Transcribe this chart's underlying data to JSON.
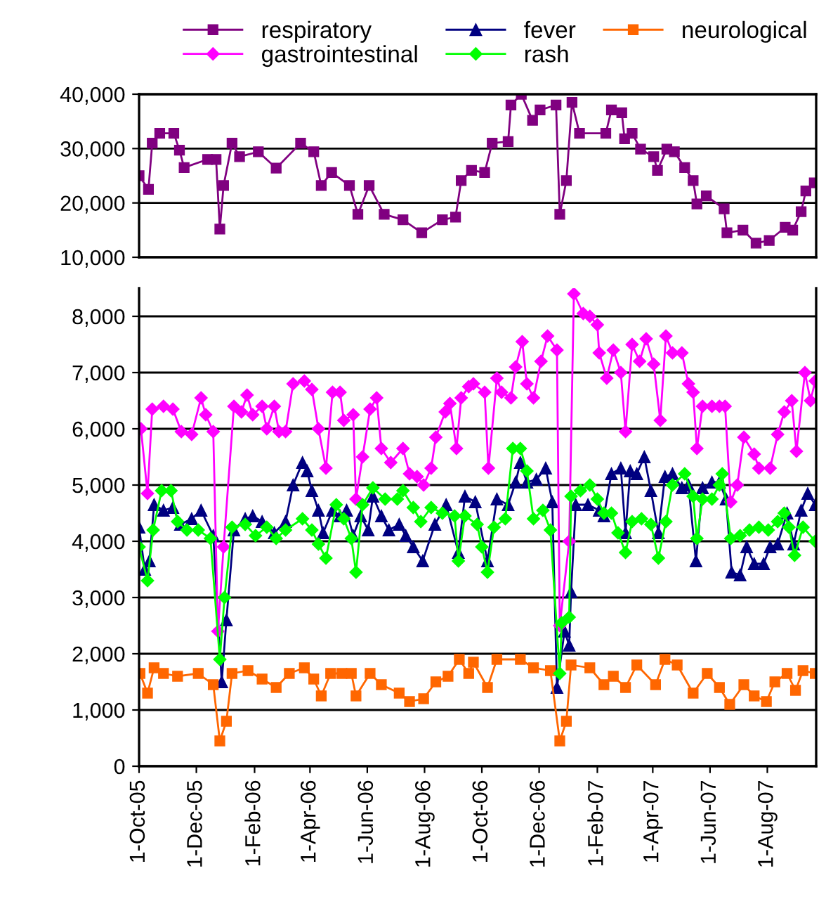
{
  "chart_data": [
    {
      "type": "line",
      "legend": "top",
      "grid": "y",
      "tick_labels": "y",
      "line_style": "solid",
      "xlim": [
        "2005-10-01",
        "2007-09-22"
      ],
      "ylim": [
        10000,
        40000
      ],
      "yticks": [
        {
          "value": 10000,
          "label": "10,000"
        },
        {
          "value": 20000,
          "label": "20,000"
        },
        {
          "value": 30000,
          "label": "30,000"
        },
        {
          "value": 40000,
          "label": "40,000"
        }
      ],
      "series": [
        {
          "name": "respiratory",
          "color": "#800080",
          "marker": "square",
          "x": [
            "2005-10-01",
            "2005-10-11",
            "2005-10-15",
            "2005-10-23",
            "2005-11-07",
            "2005-11-13",
            "2005-11-18",
            "2005-12-13",
            "2005-12-22",
            "2005-12-26",
            "2005-12-30",
            "2006-01-08",
            "2006-01-16",
            "2006-02-05",
            "2006-02-24",
            "2006-03-22",
            "2006-04-05",
            "2006-04-13",
            "2006-04-24",
            "2006-05-13",
            "2006-05-22",
            "2006-06-03",
            "2006-06-19",
            "2006-07-09",
            "2006-07-29",
            "2006-08-20",
            "2006-09-03",
            "2006-09-09",
            "2006-09-20",
            "2006-10-04",
            "2006-10-12",
            "2006-10-29",
            "2006-11-01",
            "2006-11-12",
            "2006-11-24",
            "2006-12-02",
            "2006-12-19",
            "2006-12-23",
            "2006-12-30",
            "2007-01-05",
            "2007-01-13",
            "2007-02-10",
            "2007-02-16",
            "2007-02-27",
            "2007-03-02",
            "2007-03-10",
            "2007-03-19",
            "2007-04-02",
            "2007-04-06",
            "2007-04-16",
            "2007-04-24",
            "2007-05-05",
            "2007-05-14",
            "2007-05-18",
            "2007-05-28",
            "2007-06-16",
            "2007-06-19",
            "2007-07-06",
            "2007-07-20",
            "2007-08-03",
            "2007-08-20",
            "2007-08-28",
            "2007-09-06",
            "2007-09-11",
            "2007-09-20"
          ],
          "values": [
            25000,
            22500,
            31000,
            32800,
            32800,
            29700,
            26500,
            28000,
            28000,
            15200,
            23200,
            31000,
            28500,
            29400,
            26400,
            31000,
            29400,
            23200,
            25600,
            23200,
            17900,
            23200,
            17900,
            16900,
            14500,
            16900,
            17400,
            24100,
            26000,
            25600,
            31000,
            31300,
            38000,
            40000,
            35200,
            37100,
            38000,
            17900,
            24100,
            38500,
            32800,
            32800,
            37100,
            36600,
            31800,
            32800,
            29900,
            28500,
            26000,
            29900,
            29400,
            26500,
            24100,
            19800,
            21300,
            18900,
            14500,
            15000,
            12600,
            13100,
            15500,
            15000,
            18400,
            22200,
            23700
          ]
        }
      ]
    },
    {
      "type": "line",
      "legend": "top",
      "grid": "y",
      "line_style": "solid",
      "xlim": [
        "2005-10-01",
        "2007-09-22"
      ],
      "ylim": [
        0,
        8500
      ],
      "xticks": [
        {
          "value": "2005-10-01",
          "label": "1-Oct-05"
        },
        {
          "value": "2005-12-01",
          "label": "1-Dec-05"
        },
        {
          "value": "2006-02-01",
          "label": "1-Feb-06"
        },
        {
          "value": "2006-04-01",
          "label": "1-Apr-06"
        },
        {
          "value": "2006-06-01",
          "label": "1-Jun-06"
        },
        {
          "value": "2006-08-01",
          "label": "1-Aug-06"
        },
        {
          "value": "2006-10-01",
          "label": "1-Oct-06"
        },
        {
          "value": "2006-12-01",
          "label": "1-Dec-06"
        },
        {
          "value": "2007-02-01",
          "label": "1-Feb-07"
        },
        {
          "value": "2007-04-01",
          "label": "1-Apr-07"
        },
        {
          "value": "2007-06-01",
          "label": "1-Jun-07"
        },
        {
          "value": "2007-08-01",
          "label": "1-Aug-07"
        }
      ],
      "yticks": [
        0,
        {
          "value": 1000,
          "label": "1,000"
        },
        {
          "value": 2000,
          "label": "2,000"
        },
        {
          "value": 3000,
          "label": "3,000"
        },
        {
          "value": 4000,
          "label": "4,000"
        },
        {
          "value": 5000,
          "label": "5,000"
        },
        {
          "value": 6000,
          "label": "6,000"
        },
        {
          "value": 7000,
          "label": "7,000"
        },
        {
          "value": 8000,
          "label": "8,000"
        }
      ],
      "series": [
        {
          "name": "fever",
          "color": "#000080",
          "marker": "triangle",
          "x": [
            "2005-10-01",
            "2005-10-07",
            "2005-10-12",
            "2005-10-17",
            "2005-10-27",
            "2005-11-06",
            "2005-11-14",
            "2005-11-26",
            "2005-12-06",
            "2005-12-19",
            "2005-12-28",
            "2006-01-02",
            "2006-01-10",
            "2006-01-22",
            "2006-01-30",
            "2006-02-09",
            "2006-02-22",
            "2006-03-06",
            "2006-03-14",
            "2006-03-24",
            "2006-03-29",
            "2006-04-03",
            "2006-04-10",
            "2006-04-15",
            "2006-04-25",
            "2006-05-03",
            "2006-05-10",
            "2006-05-17",
            "2006-05-25",
            "2006-06-02",
            "2006-06-07",
            "2006-06-16",
            "2006-06-24",
            "2006-07-05",
            "2006-07-12",
            "2006-07-20",
            "2006-07-30",
            "2006-08-12",
            "2006-08-24",
            "2006-09-06",
            "2006-09-13",
            "2006-09-24",
            "2006-10-07",
            "2006-10-17",
            "2006-10-29",
            "2006-11-06",
            "2006-11-11",
            "2006-11-18",
            "2006-11-28",
            "2006-12-08",
            "2006-12-15",
            "2006-12-20",
            "2006-12-28",
            "2007-01-02",
            "2007-01-04",
            "2007-01-09",
            "2007-01-22",
            "2007-02-03",
            "2007-02-08",
            "2007-02-16",
            "2007-02-26",
            "2007-03-03",
            "2007-03-08",
            "2007-03-15",
            "2007-03-23",
            "2007-03-30",
            "2007-04-07",
            "2007-04-14",
            "2007-04-22",
            "2007-05-02",
            "2007-05-09",
            "2007-05-17",
            "2007-05-24",
            "2007-06-03",
            "2007-06-11",
            "2007-06-18",
            "2007-06-24",
            "2007-07-03",
            "2007-07-10",
            "2007-07-18",
            "2007-07-28",
            "2007-08-04",
            "2007-08-12",
            "2007-08-22",
            "2007-08-29",
            "2007-09-06",
            "2007-09-13",
            "2007-09-21"
          ],
          "values": [
            4250,
            3500,
            3650,
            4650,
            4550,
            4600,
            4300,
            4400,
            4550,
            4100,
            1500,
            2600,
            4200,
            4400,
            4450,
            4350,
            4150,
            4350,
            5000,
            5400,
            5250,
            4900,
            4550,
            4150,
            4550,
            4450,
            4550,
            4100,
            4450,
            4200,
            4800,
            4450,
            4200,
            4300,
            4100,
            3900,
            3650,
            4300,
            4650,
            3800,
            4800,
            4700,
            3650,
            4750,
            4650,
            5050,
            5400,
            5050,
            5100,
            5300,
            4700,
            1400,
            2400,
            2150,
            3100,
            4650,
            4650,
            4550,
            4450,
            5200,
            5300,
            4150,
            5250,
            5200,
            5500,
            4900,
            4150,
            5150,
            5200,
            4950,
            5000,
            3650,
            4950,
            5050,
            5050,
            4750,
            3450,
            3400,
            3900,
            3600,
            3600,
            3900,
            3950,
            4500,
            3950,
            4550,
            4850,
            4650
          ]
        },
        {
          "name": "neurological",
          "color": "#ff6600",
          "marker": "square",
          "x": [
            "2005-10-02",
            "2005-10-10",
            "2005-10-17",
            "2005-10-27",
            "2005-11-11",
            "2005-12-03",
            "2005-12-19",
            "2005-12-26",
            "2006-01-02",
            "2006-01-08",
            "2006-01-25",
            "2006-02-09",
            "2006-02-24",
            "2006-03-10",
            "2006-03-26",
            "2006-04-05",
            "2006-04-13",
            "2006-04-23",
            "2006-05-05",
            "2006-05-15",
            "2006-05-20",
            "2006-06-04",
            "2006-06-16",
            "2006-07-05",
            "2006-07-16",
            "2006-07-31",
            "2006-08-13",
            "2006-08-26",
            "2006-09-07",
            "2006-09-17",
            "2006-09-22",
            "2006-10-07",
            "2006-10-17",
            "2006-11-11",
            "2006-11-25",
            "2006-12-13",
            "2006-12-23",
            "2006-12-30",
            "2007-01-04",
            "2007-01-24",
            "2007-02-08",
            "2007-02-18",
            "2007-03-03",
            "2007-03-15",
            "2007-04-04",
            "2007-04-14",
            "2007-04-27",
            "2007-05-14",
            "2007-05-29",
            "2007-06-11",
            "2007-06-22",
            "2007-07-07",
            "2007-07-18",
            "2007-07-31",
            "2007-08-09",
            "2007-08-22",
            "2007-08-31",
            "2007-09-08",
            "2007-09-21"
          ],
          "values": [
            1650,
            1300,
            1750,
            1650,
            1600,
            1650,
            1450,
            450,
            800,
            1650,
            1700,
            1550,
            1400,
            1650,
            1750,
            1550,
            1250,
            1650,
            1650,
            1650,
            1250,
            1650,
            1450,
            1300,
            1150,
            1200,
            1500,
            1600,
            1900,
            1650,
            1850,
            1400,
            1900,
            1900,
            1750,
            1700,
            450,
            800,
            1800,
            1750,
            1450,
            1600,
            1400,
            1800,
            1450,
            1900,
            1800,
            1300,
            1650,
            1400,
            1100,
            1450,
            1250,
            1150,
            1500,
            1650,
            1350,
            1700,
            1650
          ]
        },
        {
          "name": "gastrointestinal",
          "color": "#ff00ff",
          "marker": "diamond",
          "x": [
            "2005-10-03",
            "2005-10-10",
            "2005-10-15",
            "2005-10-27",
            "2005-11-06",
            "2005-11-15",
            "2005-11-26",
            "2005-12-06",
            "2005-12-11",
            "2005-12-19",
            "2005-12-24",
            "2005-12-30",
            "2006-01-10",
            "2006-01-18",
            "2006-01-24",
            "2006-01-30",
            "2006-02-09",
            "2006-02-14",
            "2006-02-22",
            "2006-02-27",
            "2006-03-06",
            "2006-03-14",
            "2006-03-26",
            "2006-04-03",
            "2006-04-10",
            "2006-04-18",
            "2006-04-25",
            "2006-05-03",
            "2006-05-07",
            "2006-05-17",
            "2006-05-20",
            "2006-05-27",
            "2006-06-04",
            "2006-06-11",
            "2006-06-16",
            "2006-06-26",
            "2006-07-09",
            "2006-07-16",
            "2006-07-24",
            "2006-07-31",
            "2006-08-08",
            "2006-08-13",
            "2006-08-23",
            "2006-08-28",
            "2006-09-04",
            "2006-09-09",
            "2006-09-17",
            "2006-09-22",
            "2006-10-04",
            "2006-10-08",
            "2006-10-17",
            "2006-10-22",
            "2006-11-01",
            "2006-11-06",
            "2006-11-13",
            "2006-11-18",
            "2006-11-25",
            "2006-12-03",
            "2006-12-10",
            "2006-12-20",
            "2006-12-23",
            "2007-01-02",
            "2007-01-07",
            "2007-01-17",
            "2007-01-24",
            "2007-02-01",
            "2007-02-03",
            "2007-02-11",
            "2007-02-18",
            "2007-02-26",
            "2007-03-03",
            "2007-03-10",
            "2007-03-18",
            "2007-03-25",
            "2007-04-02",
            "2007-04-09",
            "2007-04-15",
            "2007-04-22",
            "2007-05-02",
            "2007-05-09",
            "2007-05-14",
            "2007-05-18",
            "2007-05-24",
            "2007-06-03",
            "2007-06-11",
            "2007-06-17",
            "2007-06-23",
            "2007-06-30",
            "2007-07-07",
            "2007-07-18",
            "2007-07-23",
            "2007-08-04",
            "2007-08-12",
            "2007-08-19",
            "2007-08-27",
            "2007-09-01",
            "2007-09-10",
            "2007-09-16",
            "2007-09-21"
          ],
          "values": [
            6000,
            4850,
            6350,
            6400,
            6350,
            5950,
            5900,
            6550,
            6250,
            5950,
            2400,
            3900,
            6400,
            6300,
            6600,
            6250,
            6400,
            6000,
            6400,
            5950,
            5950,
            6800,
            6850,
            6700,
            6000,
            5300,
            6650,
            6650,
            6150,
            6250,
            4750,
            5500,
            6350,
            6550,
            5650,
            5400,
            5650,
            5200,
            5150,
            5000,
            5300,
            5850,
            6300,
            6450,
            5650,
            6550,
            6750,
            6800,
            6650,
            5300,
            6900,
            6650,
            6550,
            7100,
            7550,
            6800,
            6550,
            7200,
            7650,
            7400,
            2500,
            4000,
            8400,
            8050,
            8000,
            7850,
            7350,
            6900,
            7400,
            7000,
            5950,
            7500,
            7200,
            7600,
            7150,
            6150,
            7650,
            7350,
            7350,
            6800,
            6650,
            5650,
            6400,
            6400,
            6400,
            6400,
            4700,
            5000,
            5850,
            5550,
            5300,
            5300,
            5900,
            6300,
            6500,
            5600,
            7000,
            6500,
            6850
          ]
        },
        {
          "name": "rash",
          "color": "#00ff00",
          "marker": "diamond",
          "x": [
            "2005-10-01",
            "2005-10-10",
            "2005-10-16",
            "2005-10-25",
            "2005-11-04",
            "2005-11-11",
            "2005-11-21",
            "2005-12-03",
            "2005-12-16",
            "2005-12-26",
            "2005-12-31",
            "2006-01-08",
            "2006-01-22",
            "2006-02-02",
            "2006-02-14",
            "2006-02-24",
            "2006-03-06",
            "2006-03-24",
            "2006-04-03",
            "2006-04-10",
            "2006-04-18",
            "2006-04-29",
            "2006-05-07",
            "2006-05-15",
            "2006-05-20",
            "2006-05-27",
            "2006-06-07",
            "2006-06-20",
            "2006-07-03",
            "2006-07-09",
            "2006-07-20",
            "2006-07-28",
            "2006-08-08",
            "2006-08-20",
            "2006-09-02",
            "2006-09-06",
            "2006-09-13",
            "2006-09-26",
            "2006-10-01",
            "2006-10-07",
            "2006-10-14",
            "2006-10-26",
            "2006-11-03",
            "2006-11-11",
            "2006-11-18",
            "2006-11-25",
            "2006-12-05",
            "2006-12-13",
            "2006-12-23",
            "2006-12-25",
            "2007-01-02",
            "2007-01-04",
            "2007-01-14",
            "2007-01-24",
            "2007-02-01",
            "2007-02-08",
            "2007-02-16",
            "2007-02-23",
            "2007-03-03",
            "2007-03-10",
            "2007-03-20",
            "2007-03-30",
            "2007-04-07",
            "2007-04-15",
            "2007-04-22",
            "2007-05-05",
            "2007-05-14",
            "2007-05-18",
            "2007-05-24",
            "2007-06-03",
            "2007-06-11",
            "2007-06-14",
            "2007-06-23",
            "2007-07-03",
            "2007-07-13",
            "2007-07-23",
            "2007-08-02",
            "2007-08-12",
            "2007-08-19",
            "2007-08-24",
            "2007-08-30",
            "2007-09-08",
            "2007-09-21"
          ],
          "values": [
            3900,
            3300,
            4200,
            4900,
            4900,
            4350,
            4200,
            4200,
            4050,
            1900,
            3000,
            4250,
            4300,
            4100,
            4250,
            4050,
            4200,
            4400,
            4200,
            3950,
            3700,
            4650,
            4400,
            4050,
            3450,
            4650,
            4950,
            4750,
            4750,
            4900,
            4600,
            4350,
            4600,
            4500,
            4450,
            3650,
            4450,
            4300,
            3900,
            3450,
            4250,
            4400,
            5650,
            5650,
            5250,
            4400,
            4550,
            4200,
            1650,
            2550,
            2650,
            4800,
            4900,
            5000,
            4750,
            4500,
            4500,
            4150,
            3800,
            4350,
            4400,
            4300,
            3700,
            4350,
            5000,
            5200,
            4800,
            4050,
            4750,
            4750,
            5000,
            5200,
            4050,
            4100,
            4200,
            4250,
            4200,
            4350,
            4500,
            4250,
            3750,
            4250,
            4000
          ]
        }
      ]
    }
  ]
}
